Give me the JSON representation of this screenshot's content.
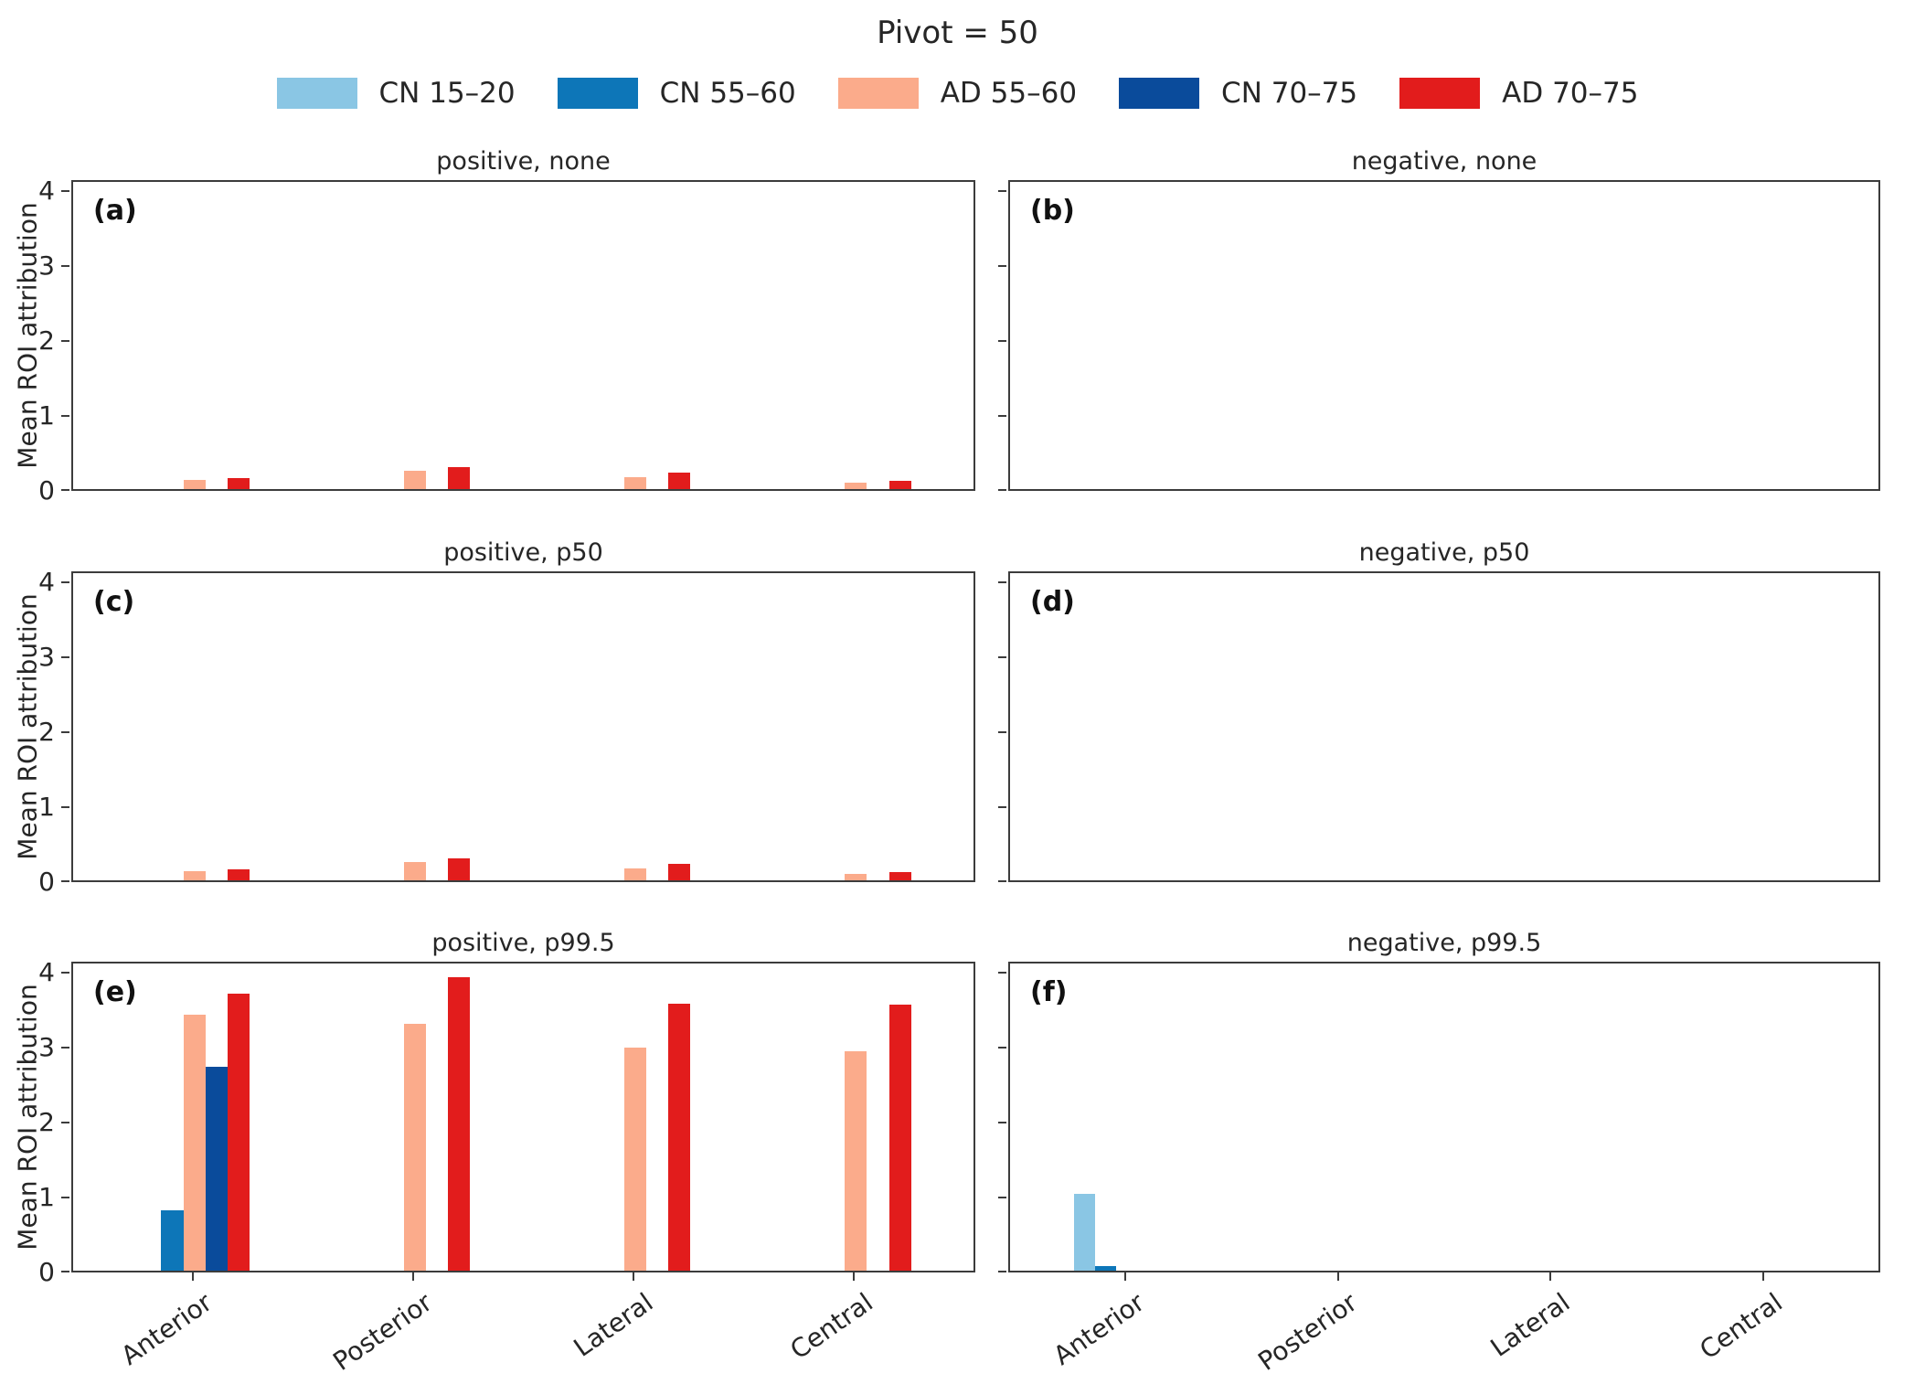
{
  "figure": {
    "suptitle": "Pivot = 50",
    "ylabel": "Mean ROI attribution",
    "categories": [
      "Anterior",
      "Posterior",
      "Lateral",
      "Central"
    ],
    "legend": [
      {
        "label": "CN 15–20",
        "color": "#8ac6e4"
      },
      {
        "label": "CN 55–60",
        "color": "#0d76b8"
      },
      {
        "label": "AD 55–60",
        "color": "#fbab8b"
      },
      {
        "label": "CN 70–75",
        "color": "#0a4b9b"
      },
      {
        "label": "AD 70–75",
        "color": "#e21c1c"
      }
    ],
    "axis_color": "#3c3c3c",
    "yticks": [
      0,
      1,
      2,
      3,
      4
    ],
    "ylim": [
      0,
      4.15
    ]
  },
  "chart_data": {
    "type": "bar",
    "title": "Pivot = 50",
    "ylabel": "Mean ROI attribution",
    "categories": [
      "Anterior",
      "Posterior",
      "Lateral",
      "Central"
    ],
    "legend_position": "top",
    "grid": false,
    "ylim": [
      0,
      4.15
    ],
    "series_names": [
      "CN 15–20",
      "CN 55–60",
      "AD 55–60",
      "CN 70–75",
      "AD 70–75"
    ],
    "subplots": [
      {
        "panel": "(a)",
        "title": "positive, none",
        "row": 0,
        "col": 0,
        "series": [
          {
            "name": "CN 15–20",
            "values": [
              0,
              0,
              0,
              0
            ]
          },
          {
            "name": "CN 55–60",
            "values": [
              0,
              0,
              0,
              0
            ]
          },
          {
            "name": "AD 55–60",
            "values": [
              0.12,
              0.24,
              0.16,
              0.08
            ]
          },
          {
            "name": "CN 70–75",
            "values": [
              0,
              0,
              0,
              0
            ]
          },
          {
            "name": "AD 70–75",
            "values": [
              0.15,
              0.29,
              0.22,
              0.11
            ]
          }
        ]
      },
      {
        "panel": "(b)",
        "title": "negative, none",
        "row": 0,
        "col": 1,
        "series": [
          {
            "name": "CN 15–20",
            "values": [
              0,
              0,
              0,
              0
            ]
          },
          {
            "name": "CN 55–60",
            "values": [
              0,
              0,
              0,
              0
            ]
          },
          {
            "name": "AD 55–60",
            "values": [
              0,
              0,
              0,
              0
            ]
          },
          {
            "name": "CN 70–75",
            "values": [
              0,
              0,
              0,
              0
            ]
          },
          {
            "name": "AD 70–75",
            "values": [
              0,
              0,
              0,
              0
            ]
          }
        ]
      },
      {
        "panel": "(c)",
        "title": "positive, p50",
        "row": 1,
        "col": 0,
        "series": [
          {
            "name": "CN 15–20",
            "values": [
              0,
              0,
              0,
              0
            ]
          },
          {
            "name": "CN 55–60",
            "values": [
              0,
              0,
              0,
              0
            ]
          },
          {
            "name": "AD 55–60",
            "values": [
              0.12,
              0.24,
              0.16,
              0.08
            ]
          },
          {
            "name": "CN 70–75",
            "values": [
              0,
              0,
              0,
              0
            ]
          },
          {
            "name": "AD 70–75",
            "values": [
              0.15,
              0.29,
              0.22,
              0.11
            ]
          }
        ]
      },
      {
        "panel": "(d)",
        "title": "negative, p50",
        "row": 1,
        "col": 1,
        "series": [
          {
            "name": "CN 15–20",
            "values": [
              0,
              0,
              0,
              0
            ]
          },
          {
            "name": "CN 55–60",
            "values": [
              0,
              0,
              0,
              0
            ]
          },
          {
            "name": "AD 55–60",
            "values": [
              0,
              0,
              0,
              0
            ]
          },
          {
            "name": "CN 70–75",
            "values": [
              0,
              0,
              0,
              0
            ]
          },
          {
            "name": "AD 70–75",
            "values": [
              0,
              0,
              0,
              0
            ]
          }
        ]
      },
      {
        "panel": "(e)",
        "title": "positive, p99.5",
        "row": 2,
        "col": 0,
        "series": [
          {
            "name": "CN 15–20",
            "values": [
              0,
              0,
              0,
              0
            ]
          },
          {
            "name": "CN 55–60",
            "values": [
              0.8,
              0,
              0,
              0
            ]
          },
          {
            "name": "AD 55–60",
            "values": [
              3.42,
              3.3,
              2.98,
              2.93
            ]
          },
          {
            "name": "CN 70–75",
            "values": [
              2.72,
              0,
              0,
              0
            ]
          },
          {
            "name": "AD 70–75",
            "values": [
              3.7,
              3.92,
              3.57,
              3.55
            ]
          }
        ]
      },
      {
        "panel": "(f)",
        "title": "negative, p99.5",
        "row": 2,
        "col": 1,
        "series": [
          {
            "name": "CN 15–20",
            "values": [
              1.02,
              0,
              0,
              0
            ]
          },
          {
            "name": "CN 55–60",
            "values": [
              0.06,
              0,
              0,
              0
            ]
          },
          {
            "name": "AD 55–60",
            "values": [
              0,
              0,
              0,
              0
            ]
          },
          {
            "name": "CN 70–75",
            "values": [
              0,
              0,
              0,
              0
            ]
          },
          {
            "name": "AD 70–75",
            "values": [
              0,
              0,
              0,
              0
            ]
          }
        ]
      }
    ]
  }
}
